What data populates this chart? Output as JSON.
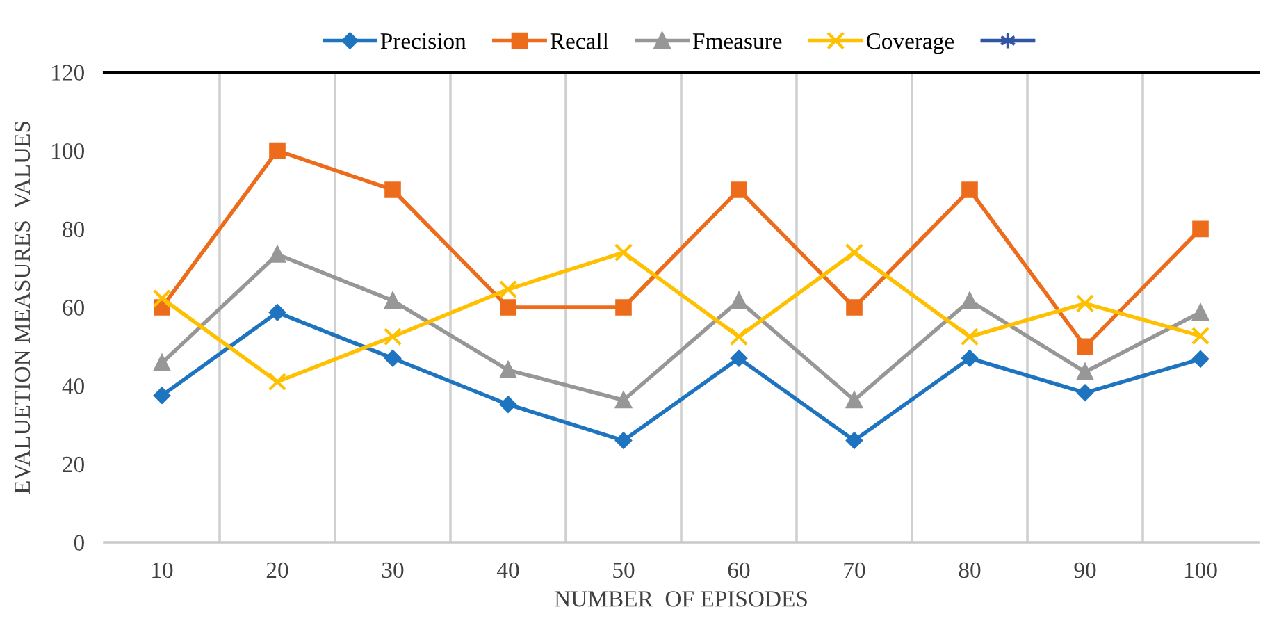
{
  "chart_data": {
    "type": "line",
    "xlabel": "NUMBER  OF EPISODES",
    "ylabel": "EVALUETION MEASURES  VALUES",
    "categories": [
      "10",
      "20",
      "30",
      "40",
      "50",
      "60",
      "70",
      "80",
      "90",
      "100"
    ],
    "ylim": [
      0,
      120
    ],
    "yticks": [
      0,
      20,
      40,
      60,
      80,
      100,
      120
    ],
    "grid": "x",
    "legend": "top",
    "series": [
      {
        "name": "Precision",
        "color": "#1f74c0",
        "marker": "diamond",
        "values": [
          37.5,
          58.7,
          47,
          35.2,
          26,
          47,
          26,
          47,
          38.2,
          46.8
        ]
      },
      {
        "name": "Recall",
        "color": "#ec6c1c",
        "marker": "square",
        "values": [
          60,
          100,
          90,
          60,
          60,
          90,
          60,
          90,
          50,
          80
        ]
      },
      {
        "name": "Fmeasure",
        "color": "#979797",
        "marker": "triangle",
        "values": [
          45.8,
          73.5,
          61.7,
          44,
          36.3,
          61.7,
          36.3,
          61.7,
          43.5,
          58.7
        ]
      },
      {
        "name": "Coverage",
        "color": "#ffc000",
        "marker": "cross",
        "values": [
          62.3,
          41,
          52.5,
          64.6,
          74,
          52.5,
          74,
          52.5,
          61,
          52.7
        ]
      },
      {
        "color": "#2f55a4",
        "marker": "star",
        "values": [
          null,
          null,
          null,
          null,
          null,
          null,
          null,
          null,
          null,
          null
        ]
      }
    ]
  }
}
